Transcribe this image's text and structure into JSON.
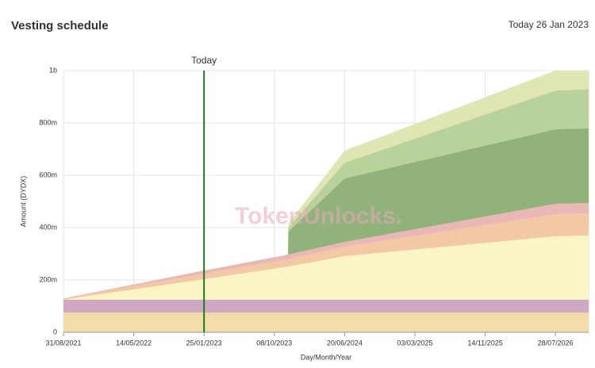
{
  "chart_data": {
    "type": "stacked_area",
    "title": "Vesting schedule",
    "subtitle": "Today 26 Jan 2023",
    "x_label": "Day/Month/Year",
    "y_label": "Amount (DYDX)",
    "watermark": "TokenUnlocks.",
    "marker": {
      "x": "25/01/2023",
      "label": "Today",
      "color": "#1f7a1f"
    },
    "x": [
      "31/08/2021",
      "25/01/2023",
      "27/11/2023",
      "28/11/2023",
      "20/06/2024",
      "28/07/2026",
      "26/11/2026"
    ],
    "series": [
      {
        "color": "#f3dca8",
        "values": [
          75000000,
          75000000,
          75000000,
          75000000,
          75000000,
          75000000,
          75000000
        ]
      },
      {
        "color": "#cfa8c4",
        "values": [
          50000000,
          50000000,
          50000000,
          50000000,
          50000000,
          50000000,
          50000000
        ]
      },
      {
        "color": "#fbf4c6",
        "values": [
          0,
          78000000,
          126000000,
          126000000,
          166000000,
          242000000,
          245000000
        ]
      },
      {
        "color": "#f2c9a4",
        "values": [
          5000000,
          21000000,
          28000000,
          28000000,
          36000000,
          84000000,
          84000000
        ]
      },
      {
        "color": "#e9b8b6",
        "values": [
          0,
          12000000,
          18000000,
          18000000,
          18000000,
          40000000,
          40000000
        ]
      },
      {
        "color": "#92b27c",
        "values": [
          0,
          0,
          0,
          88000000,
          243000000,
          285000000,
          285000000
        ]
      },
      {
        "color": "#b9d29c",
        "values": [
          0,
          0,
          0,
          15000000,
          60000000,
          148000000,
          150000000
        ]
      },
      {
        "color": "#dfe6b3",
        "values": [
          0,
          0,
          0,
          15000000,
          46000000,
          76000000,
          71000000
        ]
      }
    ],
    "xlim": [
      "31/08/2021",
      "26/11/2026"
    ],
    "xticks": [
      "31/08/2021",
      "14/05/2022",
      "25/01/2023",
      "08/10/2023",
      "20/06/2024",
      "03/03/2025",
      "14/11/2025",
      "28/07/2026"
    ],
    "ylim": [
      0,
      1000000000
    ],
    "yticks": [
      {
        "value": 0,
        "label": "0"
      },
      {
        "value": 200000000,
        "label": "200m"
      },
      {
        "value": 400000000,
        "label": "400m"
      },
      {
        "value": 600000000,
        "label": "600m"
      },
      {
        "value": 800000000,
        "label": "800m"
      },
      {
        "value": 1000000000,
        "label": "1b"
      }
    ],
    "grid": true
  }
}
